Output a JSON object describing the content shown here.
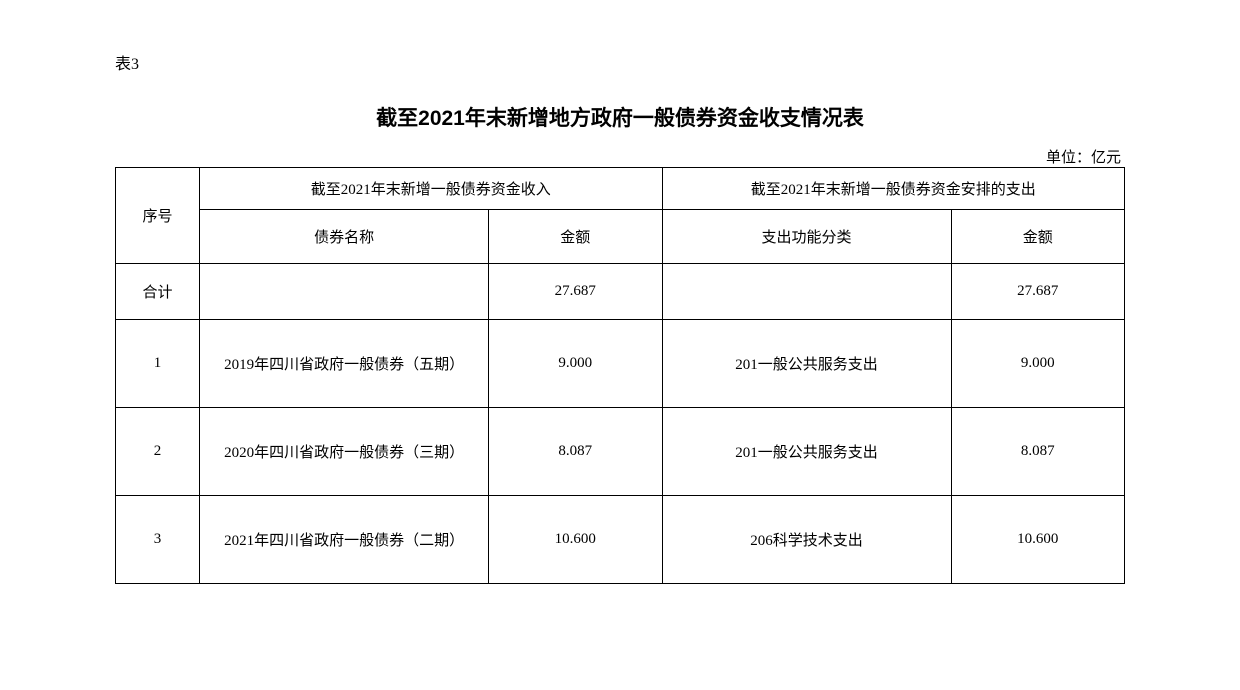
{
  "table_label": "表3",
  "title": "截至2021年末新增地方政府一般债券资金收支情况表",
  "unit": "单位：亿元",
  "headers": {
    "seq": "序号",
    "income_group": "截至2021年末新增一般债券资金收入",
    "expense_group": "截至2021年末新增一般债券资金安排的支出",
    "bond_name": "债券名称",
    "amount": "金额",
    "category": "支出功能分类"
  },
  "total": {
    "label": "合计",
    "income_amount": "27.687",
    "expense_amount": "27.687"
  },
  "rows": [
    {
      "seq": "1",
      "bond_name": "2019年四川省政府一般债券（五期）",
      "income_amount": "9.000",
      "category": "201一般公共服务支出",
      "expense_amount": "9.000"
    },
    {
      "seq": "2",
      "bond_name": "2020年四川省政府一般债券（三期）",
      "income_amount": "8.087",
      "category": "201一般公共服务支出",
      "expense_amount": "8.087"
    },
    {
      "seq": "3",
      "bond_name": "2021年四川省政府一般债券（二期）",
      "income_amount": "10.600",
      "category": "206科学技术支出",
      "expense_amount": "10.600"
    }
  ],
  "style": {
    "background_color": "#ffffff",
    "border_color": "#000000",
    "text_color": "#000000",
    "title_fontsize": 21,
    "body_fontsize": 15,
    "label_fontsize": 16
  }
}
